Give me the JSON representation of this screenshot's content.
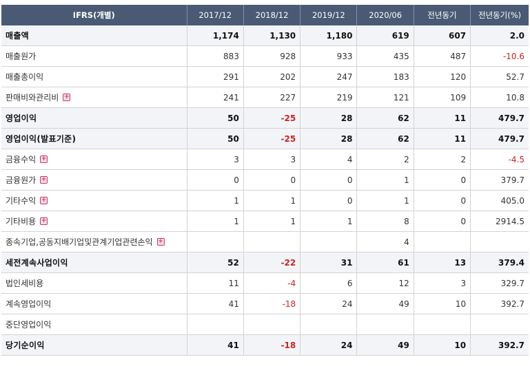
{
  "header": [
    "IFRS(개별)",
    "2017/12",
    "2018/12",
    "2019/12",
    "2020/06",
    "전년동기",
    "전년동기(%)"
  ],
  "rows": [
    {
      "label": "매출액",
      "bold": true,
      "expand": false,
      "values": [
        "1,174",
        "1,130",
        "1,180",
        "619",
        "607",
        "2.0"
      ]
    },
    {
      "label": "매출원가",
      "bold": false,
      "expand": false,
      "values": [
        "883",
        "928",
        "933",
        "435",
        "487",
        "-10.6"
      ]
    },
    {
      "label": "매출총이익",
      "bold": false,
      "expand": false,
      "values": [
        "291",
        "202",
        "247",
        "183",
        "120",
        "52.7"
      ]
    },
    {
      "label": "판매비와관리비",
      "bold": false,
      "expand": true,
      "values": [
        "241",
        "227",
        "219",
        "121",
        "109",
        "10.8"
      ]
    },
    {
      "label": "영업이익",
      "bold": true,
      "expand": false,
      "values": [
        "50",
        "-25",
        "28",
        "62",
        "11",
        "479.7"
      ]
    },
    {
      "label": "영업이익(발표기준)",
      "bold": true,
      "expand": false,
      "values": [
        "50",
        "-25",
        "28",
        "62",
        "11",
        "479.7"
      ]
    },
    {
      "label": "금융수익",
      "bold": false,
      "expand": true,
      "values": [
        "3",
        "3",
        "4",
        "2",
        "2",
        "-4.5"
      ]
    },
    {
      "label": "금융원가",
      "bold": false,
      "expand": true,
      "values": [
        "0",
        "0",
        "0",
        "1",
        "0",
        "379.7"
      ]
    },
    {
      "label": "기타수익",
      "bold": false,
      "expand": true,
      "values": [
        "1",
        "1",
        "0",
        "1",
        "0",
        "405.0"
      ]
    },
    {
      "label": "기타비용",
      "bold": false,
      "expand": true,
      "values": [
        "1",
        "1",
        "1",
        "8",
        "0",
        "2914.5"
      ]
    },
    {
      "label": "종속기업,공동지배기업및관계기업관련손익",
      "bold": false,
      "expand": true,
      "values": [
        "",
        "",
        "",
        "4",
        "",
        ""
      ]
    },
    {
      "label": "세전계속사업이익",
      "bold": true,
      "expand": false,
      "values": [
        "52",
        "-22",
        "31",
        "61",
        "13",
        "379.4"
      ]
    },
    {
      "label": "법인세비용",
      "bold": false,
      "expand": false,
      "values": [
        "11",
        "-4",
        "6",
        "12",
        "3",
        "329.7"
      ]
    },
    {
      "label": "계속영업이익",
      "bold": false,
      "expand": false,
      "values": [
        "41",
        "-18",
        "24",
        "49",
        "10",
        "392.7"
      ]
    },
    {
      "label": "중단영업이익",
      "bold": false,
      "expand": false,
      "values": [
        "",
        "",
        "",
        "",
        "",
        ""
      ]
    },
    {
      "label": "당기순이익",
      "bold": true,
      "expand": false,
      "values": [
        "41",
        "-18",
        "24",
        "49",
        "10",
        "392.7"
      ]
    }
  ],
  "colors": {
    "header_bg": "#4a5a75",
    "negative": "#cc2222",
    "plus_icon": "#c83868"
  },
  "icons": {
    "expand": "plus-square-icon"
  }
}
